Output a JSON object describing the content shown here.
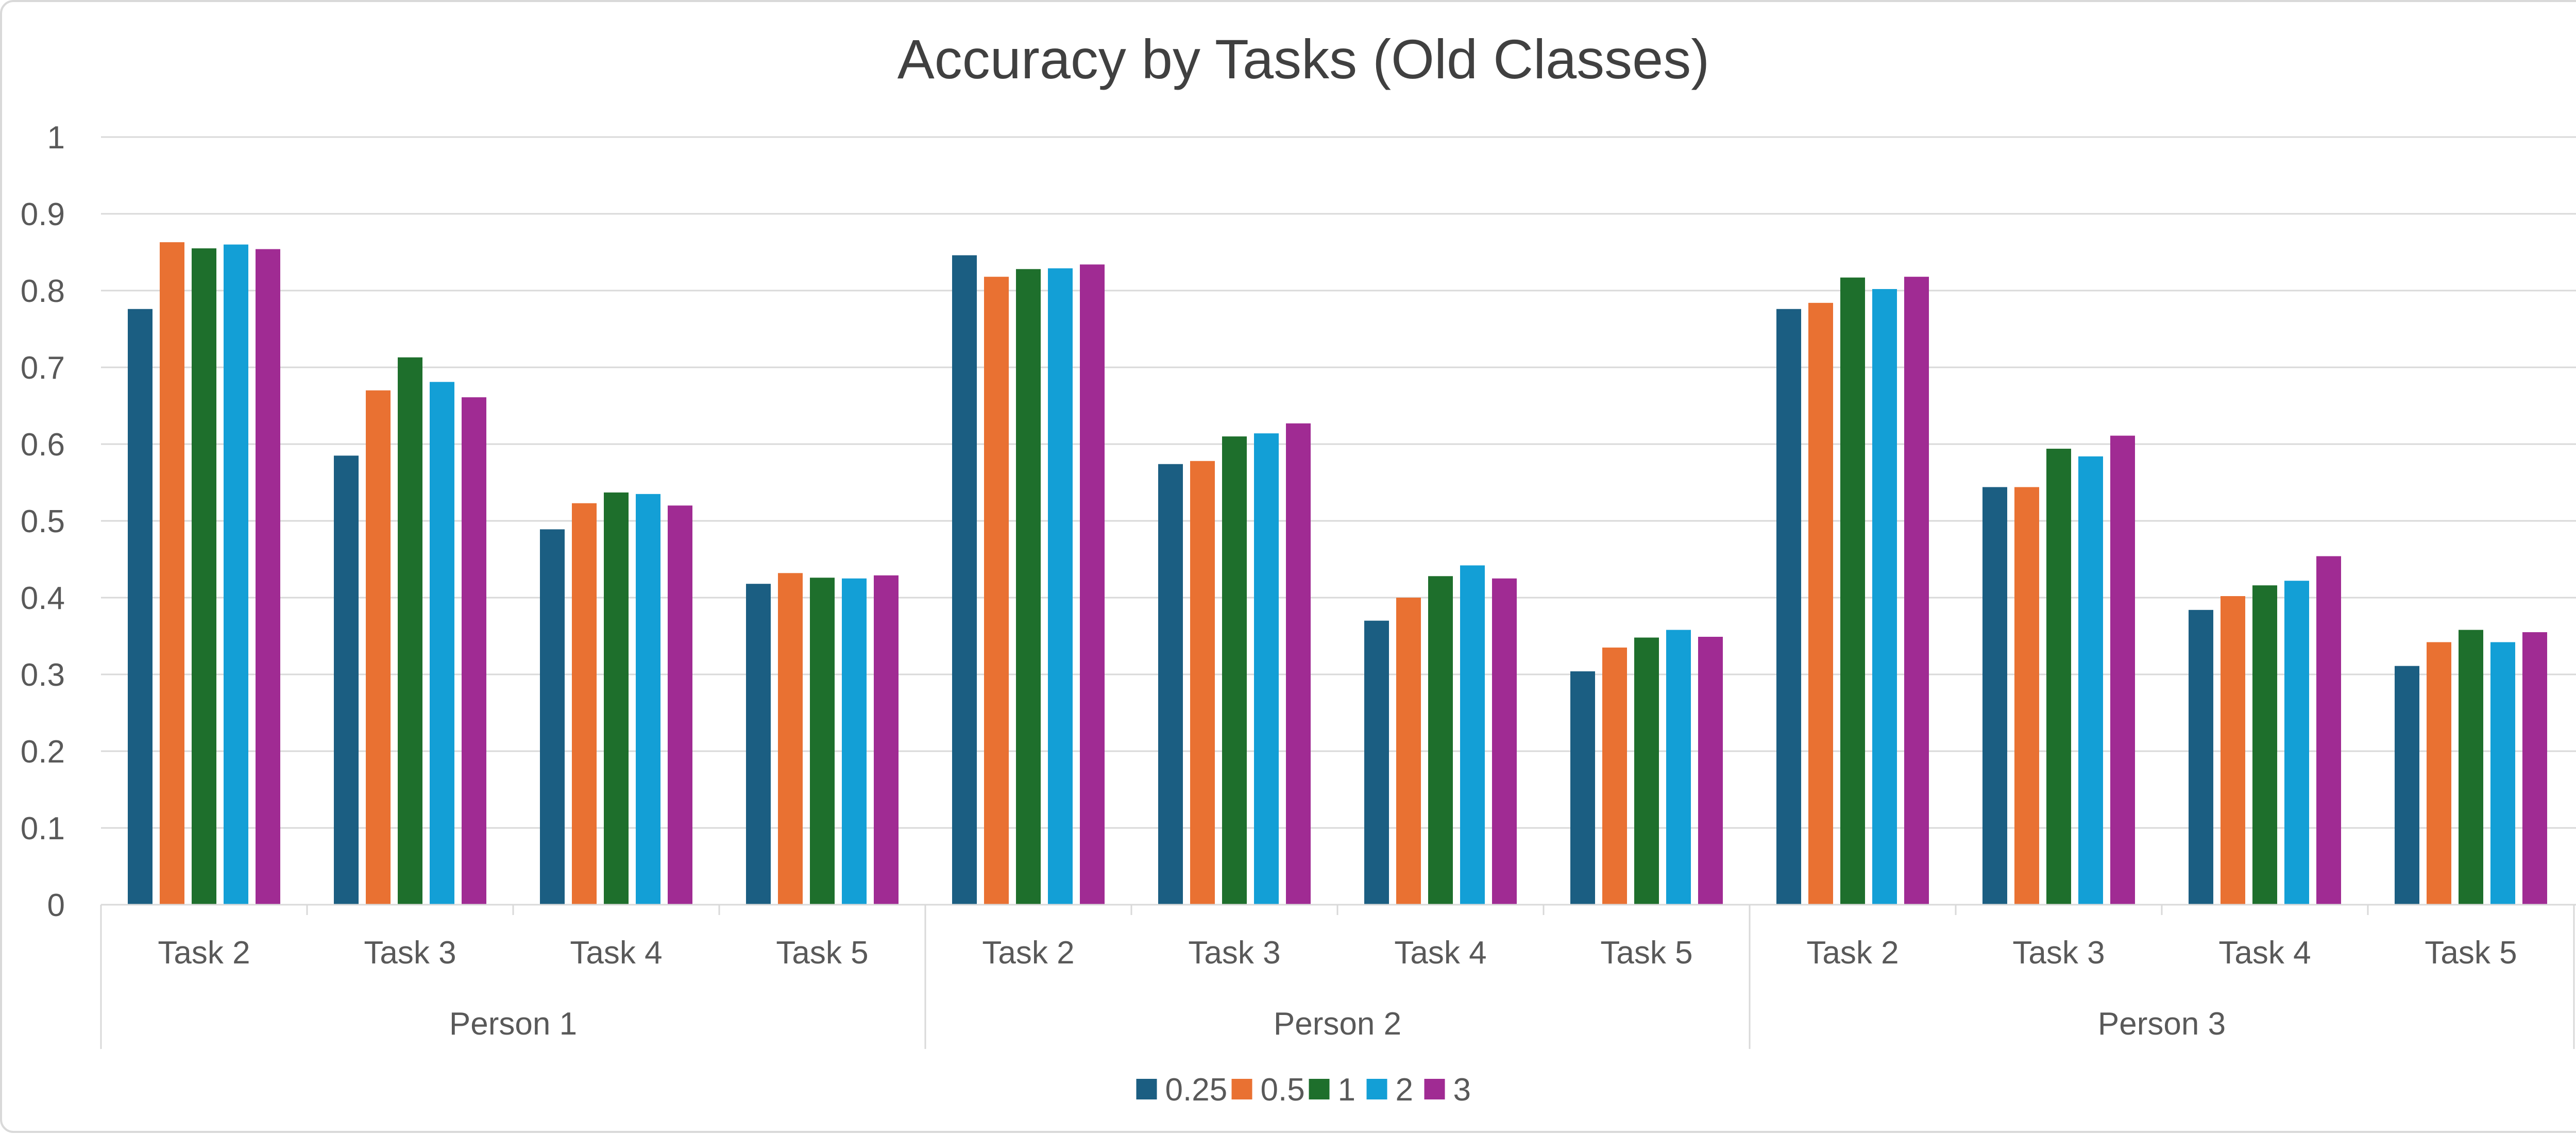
{
  "chart_data": {
    "type": "bar",
    "title": "Accuracy by Tasks (Old Classes)",
    "xlabel": "",
    "ylabel": "",
    "ylim": [
      0,
      1
    ],
    "y_ticks": [
      "0",
      "0.1",
      "0.2",
      "0.3",
      "0.4",
      "0.5",
      "0.6",
      "0.7",
      "0.8",
      "0.9",
      "1"
    ],
    "y_tick_values": [
      0,
      0.1,
      0.2,
      0.3,
      0.4,
      0.5,
      0.6,
      0.7,
      0.8,
      0.9,
      1
    ],
    "grid": true,
    "legend_position": "bottom",
    "groups": [
      {
        "label": "Person 1",
        "categories": [
          "Task 2",
          "Task 3",
          "Task 4",
          "Task 5"
        ]
      },
      {
        "label": "Person 2",
        "categories": [
          "Task 2",
          "Task 3",
          "Task 4",
          "Task 5"
        ]
      },
      {
        "label": "Person 3",
        "categories": [
          "Task 2",
          "Task 3",
          "Task 4",
          "Task 5"
        ]
      }
    ],
    "series": [
      {
        "name": "0.25",
        "color": "#1b5e82",
        "values": [
          0.776,
          0.585,
          0.489,
          0.418,
          0.846,
          0.574,
          0.37,
          0.304,
          0.776,
          0.544,
          0.384,
          0.311
        ]
      },
      {
        "name": "0.5",
        "color": "#e97132",
        "values": [
          0.863,
          0.67,
          0.523,
          0.432,
          0.818,
          0.578,
          0.4,
          0.335,
          0.784,
          0.544,
          0.402,
          0.342
        ]
      },
      {
        "name": "1",
        "color": "#1e6f2c",
        "values": [
          0.855,
          0.713,
          0.537,
          0.426,
          0.828,
          0.61,
          0.428,
          0.348,
          0.817,
          0.594,
          0.416,
          0.358
        ]
      },
      {
        "name": "2",
        "color": "#139fd6",
        "values": [
          0.86,
          0.681,
          0.535,
          0.425,
          0.829,
          0.614,
          0.442,
          0.358,
          0.802,
          0.584,
          0.422,
          0.342
        ]
      },
      {
        "name": "3",
        "color": "#a02b93",
        "values": [
          0.854,
          0.661,
          0.52,
          0.429,
          0.834,
          0.627,
          0.425,
          0.349,
          0.818,
          0.611,
          0.454,
          0.355
        ]
      }
    ]
  },
  "colors": {
    "gridline": "#d9d9d9",
    "axis_line": "#d9d9d9",
    "text": "#595959",
    "title": "#404040"
  }
}
